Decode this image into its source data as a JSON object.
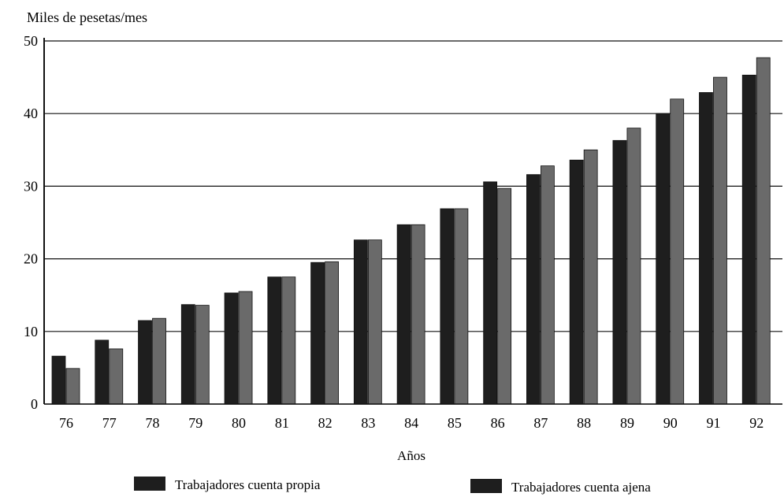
{
  "chart_data": {
    "type": "bar",
    "ylabel": "Miles de pesetas/mes",
    "xlabel": "Años",
    "ylim": [
      0,
      50
    ],
    "yticks": [
      0,
      10,
      20,
      30,
      40,
      50
    ],
    "grid": "horizontal",
    "legend_position": "bottom",
    "categories": [
      "76",
      "77",
      "78",
      "79",
      "80",
      "81",
      "82",
      "83",
      "84",
      "85",
      "86",
      "87",
      "88",
      "89",
      "90",
      "91",
      "92"
    ],
    "series": [
      {
        "name": "Trabajadores cuenta propia",
        "color": "#1e1e1e",
        "values": [
          6.6,
          8.8,
          11.5,
          13.7,
          15.3,
          17.5,
          19.5,
          22.6,
          24.7,
          26.9,
          30.6,
          31.6,
          33.6,
          36.3,
          40.0,
          42.9,
          45.3
        ]
      },
      {
        "name": "Trabajadores cuenta ajena",
        "color": "#6a6a6a",
        "values": [
          4.9,
          7.6,
          11.8,
          13.6,
          15.5,
          17.5,
          19.6,
          22.6,
          24.7,
          26.9,
          29.7,
          32.8,
          35.0,
          38.0,
          42.0,
          45.0,
          47.7
        ]
      }
    ]
  }
}
